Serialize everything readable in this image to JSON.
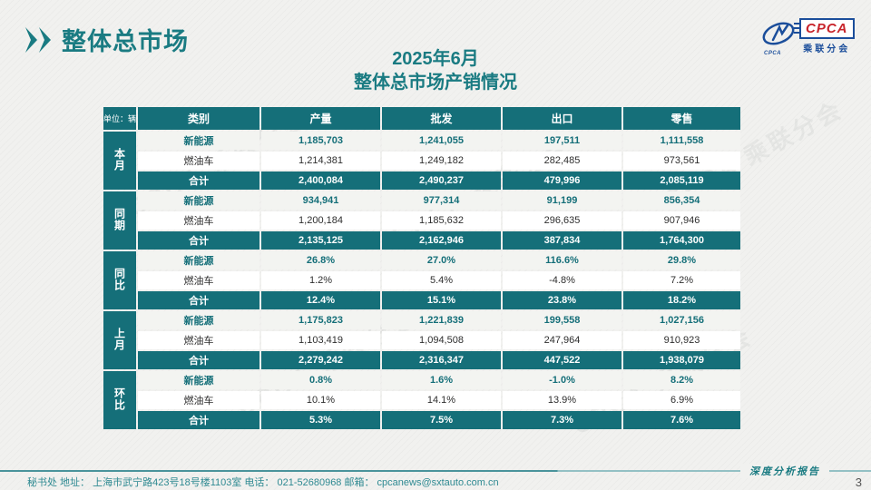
{
  "page": {
    "title": "整体总市场",
    "subtitle_line1": "2025年6月",
    "subtitle_line2": "整体总市场产销情况",
    "watermark": "CPCA 乘联分会",
    "footer_left": "秘书处  地址： 上海市武宁路423号18号楼1103室  电话： 021-52680968   邮箱： cpcanews@sxtauto.com.cn",
    "footer_right": "深度分析报告",
    "page_number": "3"
  },
  "logo": {
    "name": "CPCA",
    "icon_text": "CPCA",
    "subtext": "乘联分会"
  },
  "colors": {
    "accent_teal": "#156F79",
    "title_teal": "#1A7B82",
    "logo_red": "#C8242B",
    "logo_blue": "#1B4E9B",
    "background": "#F1F1EF"
  },
  "chart_data": {
    "type": "table",
    "unit_label": "单位：辆",
    "columns": [
      "类别",
      "产量",
      "批发",
      "出口",
      "零售"
    ],
    "row_groups": [
      {
        "label": "本月",
        "rows": [
          {
            "category": "新能源",
            "style": "nev",
            "values": [
              "1,185,703",
              "1,241,055",
              "197,511",
              "1,111,558"
            ]
          },
          {
            "category": "燃油车",
            "style": "ice",
            "values": [
              "1,214,381",
              "1,249,182",
              "282,485",
              "973,561"
            ]
          },
          {
            "category": "合计",
            "style": "total",
            "values": [
              "2,400,084",
              "2,490,237",
              "479,996",
              "2,085,119"
            ]
          }
        ]
      },
      {
        "label": "同期",
        "rows": [
          {
            "category": "新能源",
            "style": "nev",
            "values": [
              "934,941",
              "977,314",
              "91,199",
              "856,354"
            ]
          },
          {
            "category": "燃油车",
            "style": "ice",
            "values": [
              "1,200,184",
              "1,185,632",
              "296,635",
              "907,946"
            ]
          },
          {
            "category": "合计",
            "style": "total",
            "values": [
              "2,135,125",
              "2,162,946",
              "387,834",
              "1,764,300"
            ]
          }
        ]
      },
      {
        "label": "同比",
        "rows": [
          {
            "category": "新能源",
            "style": "nev",
            "values": [
              "26.8%",
              "27.0%",
              "116.6%",
              "29.8%"
            ]
          },
          {
            "category": "燃油车",
            "style": "ice",
            "values": [
              "1.2%",
              "5.4%",
              "-4.8%",
              "7.2%"
            ]
          },
          {
            "category": "合计",
            "style": "total",
            "values": [
              "12.4%",
              "15.1%",
              "23.8%",
              "18.2%"
            ]
          }
        ]
      },
      {
        "label": "上月",
        "rows": [
          {
            "category": "新能源",
            "style": "nev",
            "values": [
              "1,175,823",
              "1,221,839",
              "199,558",
              "1,027,156"
            ]
          },
          {
            "category": "燃油车",
            "style": "ice",
            "values": [
              "1,103,419",
              "1,094,508",
              "247,964",
              "910,923"
            ]
          },
          {
            "category": "合计",
            "style": "total",
            "values": [
              "2,279,242",
              "2,316,347",
              "447,522",
              "1,938,079"
            ]
          }
        ]
      },
      {
        "label": "环比",
        "rows": [
          {
            "category": "新能源",
            "style": "nev",
            "values": [
              "0.8%",
              "1.6%",
              "-1.0%",
              "8.2%"
            ]
          },
          {
            "category": "燃油车",
            "style": "ice",
            "values": [
              "10.1%",
              "14.1%",
              "13.9%",
              "6.9%"
            ]
          },
          {
            "category": "合计",
            "style": "total",
            "values": [
              "5.3%",
              "7.5%",
              "7.3%",
              "7.6%"
            ]
          }
        ]
      }
    ]
  }
}
